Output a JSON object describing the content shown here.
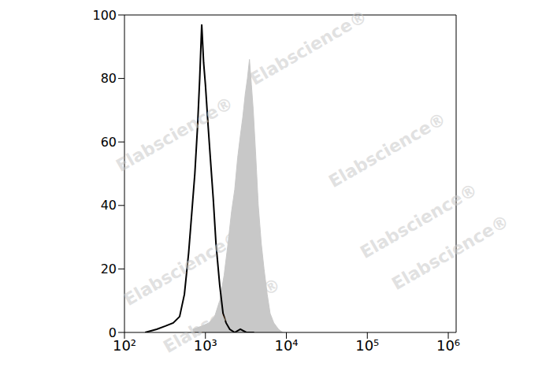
{
  "chart_data": {
    "type": "line",
    "log": "x",
    "grid": false,
    "tick_labels": true,
    "watermark": "Elabscience®",
    "xlim": [
      100,
      1250000
    ],
    "xticks": [
      {
        "value": 100,
        "label": "10²"
      },
      {
        "value": 1000,
        "label": "10³"
      },
      {
        "value": 10000,
        "label": "10⁴"
      },
      {
        "value": 100000,
        "label": "10⁵"
      },
      {
        "value": 1000000,
        "label": "10⁶"
      }
    ],
    "ylim": [
      0,
      100
    ],
    "yticks": [
      0,
      20,
      40,
      60,
      80,
      100
    ],
    "series": [
      {
        "type": "area",
        "color": "#c8c8c8",
        "x": [
          700,
          900,
          1100,
          1300,
          1500,
          1700,
          1900,
          2100,
          2300,
          2500,
          2700,
          2900,
          3100,
          3300,
          3500,
          3700,
          3900,
          4200,
          4500,
          4900,
          5300,
          5800,
          6300,
          7000,
          8000,
          9000
        ],
        "values": [
          1,
          2,
          3,
          5,
          10,
          18,
          28,
          38,
          45,
          55,
          62,
          68,
          75,
          80,
          86,
          78,
          70,
          55,
          40,
          28,
          20,
          12,
          6,
          3,
          1,
          0
        ]
      },
      {
        "type": "line",
        "color": "#000000",
        "x": [
          180,
          250,
          320,
          400,
          480,
          550,
          620,
          680,
          740,
          800,
          850,
          900,
          950,
          1000,
          1080,
          1150,
          1250,
          1350,
          1500,
          1650,
          1800,
          2000,
          2300,
          2700,
          3200,
          4000
        ],
        "values": [
          0,
          1,
          2,
          3,
          5,
          12,
          25,
          38,
          50,
          65,
          80,
          97,
          85,
          78,
          65,
          55,
          42,
          28,
          15,
          6,
          3,
          1,
          0,
          1,
          0,
          0
        ]
      }
    ]
  }
}
